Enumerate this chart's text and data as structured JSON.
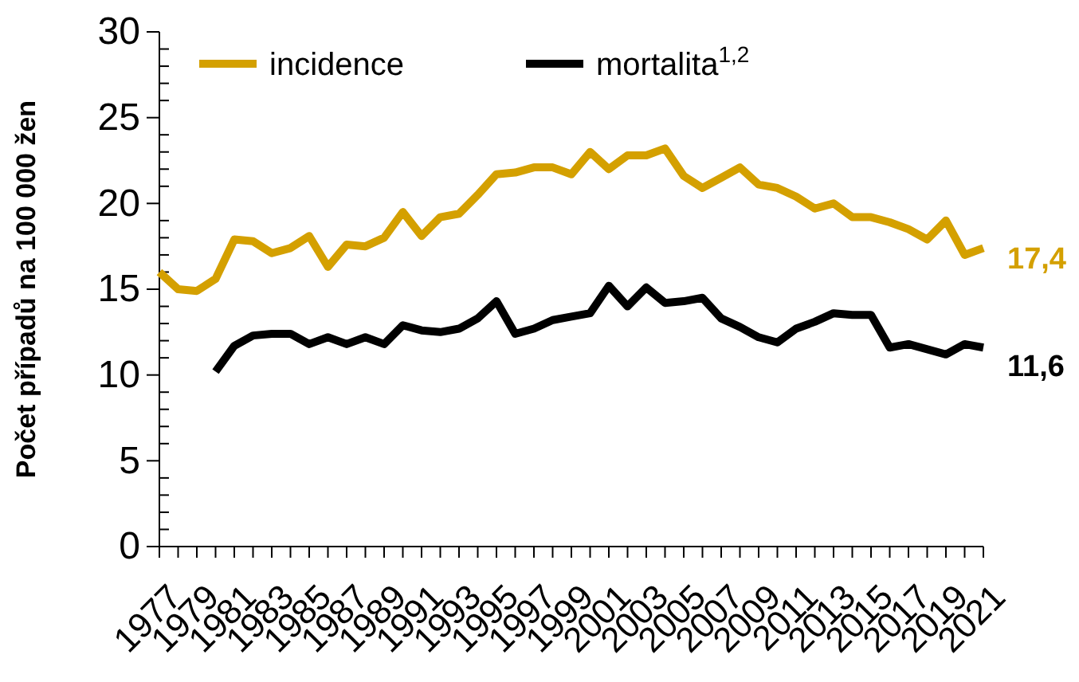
{
  "chart_data": {
    "type": "line",
    "ylabel": "Počet případů na 100 000 žen",
    "legend": "top",
    "grid": false,
    "marker": "none",
    "line_style": "solid",
    "x": [
      1977,
      1978,
      1979,
      1980,
      1981,
      1982,
      1983,
      1984,
      1985,
      1986,
      1987,
      1988,
      1989,
      1990,
      1991,
      1992,
      1993,
      1994,
      1995,
      1996,
      1997,
      1998,
      1999,
      2000,
      2001,
      2002,
      2003,
      2004,
      2005,
      2006,
      2007,
      2008,
      2009,
      2010,
      2011,
      2012,
      2013,
      2014,
      2015,
      2016,
      2017,
      2018,
      2019,
      2020,
      2021
    ],
    "xlim": [
      1977,
      2021
    ],
    "xticks": [
      {
        "value": 1977,
        "label": "1977"
      },
      {
        "value": 1978,
        "label": null
      },
      {
        "value": 1979,
        "label": "1979"
      },
      {
        "value": 1980,
        "label": null
      },
      {
        "value": 1981,
        "label": "1981"
      },
      {
        "value": 1982,
        "label": null
      },
      {
        "value": 1983,
        "label": "1983"
      },
      {
        "value": 1984,
        "label": null
      },
      {
        "value": 1985,
        "label": "1985"
      },
      {
        "value": 1986,
        "label": null
      },
      {
        "value": 1987,
        "label": "1987"
      },
      {
        "value": 1988,
        "label": null
      },
      {
        "value": 1989,
        "label": "1989"
      },
      {
        "value": 1990,
        "label": null
      },
      {
        "value": 1991,
        "label": "1991"
      },
      {
        "value": 1992,
        "label": null
      },
      {
        "value": 1993,
        "label": "1993"
      },
      {
        "value": 1994,
        "label": null
      },
      {
        "value": 1995,
        "label": "1995"
      },
      {
        "value": 1996,
        "label": null
      },
      {
        "value": 1997,
        "label": "1997"
      },
      {
        "value": 1998,
        "label": null
      },
      {
        "value": 1999,
        "label": "1999"
      },
      {
        "value": 2000,
        "label": null
      },
      {
        "value": 2001,
        "label": "2001"
      },
      {
        "value": 2002,
        "label": null
      },
      {
        "value": 2003,
        "label": "2003"
      },
      {
        "value": 2004,
        "label": null
      },
      {
        "value": 2005,
        "label": "2005"
      },
      {
        "value": 2006,
        "label": null
      },
      {
        "value": 2007,
        "label": "2007"
      },
      {
        "value": 2008,
        "label": null
      },
      {
        "value": 2009,
        "label": "2009"
      },
      {
        "value": 2010,
        "label": null
      },
      {
        "value": 2011,
        "label": "2011"
      },
      {
        "value": 2012,
        "label": null
      },
      {
        "value": 2013,
        "label": "2013"
      },
      {
        "value": 2014,
        "label": null
      },
      {
        "value": 2015,
        "label": "2015"
      },
      {
        "value": 2016,
        "label": null
      },
      {
        "value": 2017,
        "label": "2017"
      },
      {
        "value": 2018,
        "label": null
      },
      {
        "value": 2019,
        "label": "2019"
      },
      {
        "value": 2020,
        "label": null
      },
      {
        "value": 2021,
        "label": "2021"
      }
    ],
    "ylim": [
      0,
      30
    ],
    "yticks": [
      0,
      {
        "value": 1,
        "label": null
      },
      {
        "value": 2,
        "label": null
      },
      {
        "value": 3,
        "label": null
      },
      {
        "value": 4,
        "label": null
      },
      5,
      {
        "value": 6,
        "label": null
      },
      {
        "value": 7,
        "label": null
      },
      {
        "value": 8,
        "label": null
      },
      {
        "value": 9,
        "label": null
      },
      10,
      {
        "value": 11,
        "label": null
      },
      {
        "value": 12,
        "label": null
      },
      {
        "value": 13,
        "label": null
      },
      {
        "value": 14,
        "label": null
      },
      15,
      {
        "value": 16,
        "label": null
      },
      {
        "value": 17,
        "label": null
      },
      {
        "value": 18,
        "label": null
      },
      {
        "value": 19,
        "label": null
      },
      20,
      {
        "value": 21,
        "label": null
      },
      {
        "value": 22,
        "label": null
      },
      {
        "value": 23,
        "label": null
      },
      {
        "value": 24,
        "label": null
      },
      25,
      {
        "value": 26,
        "label": null
      },
      {
        "value": 27,
        "label": null
      },
      {
        "value": 28,
        "label": null
      },
      {
        "value": 29,
        "label": null
      },
      30
    ],
    "series": [
      {
        "name": "incidence",
        "color": "#d4a000",
        "values": [
          16.0,
          15.0,
          14.9,
          15.6,
          17.9,
          17.8,
          17.1,
          17.4,
          18.1,
          16.3,
          17.6,
          17.5,
          18.0,
          19.5,
          18.1,
          19.2,
          19.4,
          20.5,
          21.7,
          21.8,
          22.1,
          22.1,
          21.7,
          23.0,
          22.0,
          22.8,
          22.8,
          23.2,
          21.6,
          20.9,
          21.5,
          22.1,
          21.1,
          20.9,
          20.4,
          19.7,
          20.0,
          19.2,
          19.2,
          18.9,
          18.5,
          17.9,
          19.0,
          17.0,
          17.4
        ]
      },
      {
        "name": "mortalita$^{1,2}$",
        "color": "#000000",
        "values": [
          null,
          null,
          null,
          10.2,
          11.7,
          12.3,
          12.4,
          12.4,
          11.8,
          12.2,
          11.8,
          12.2,
          11.8,
          12.9,
          12.6,
          12.5,
          12.7,
          13.3,
          14.3,
          12.4,
          12.7,
          13.2,
          13.4,
          13.6,
          15.2,
          14.0,
          15.1,
          14.2,
          14.3,
          14.5,
          13.3,
          12.8,
          12.2,
          11.9,
          12.7,
          13.1,
          13.6,
          13.5,
          13.5,
          11.6,
          11.8,
          11.5,
          11.2,
          11.8,
          11.6
        ]
      }
    ],
    "annotations": [
      {
        "text": "17,4",
        "x": 2021,
        "y": 17.4
      },
      {
        "text": "11,6",
        "x": 2021,
        "y": 11.6
      }
    ]
  }
}
